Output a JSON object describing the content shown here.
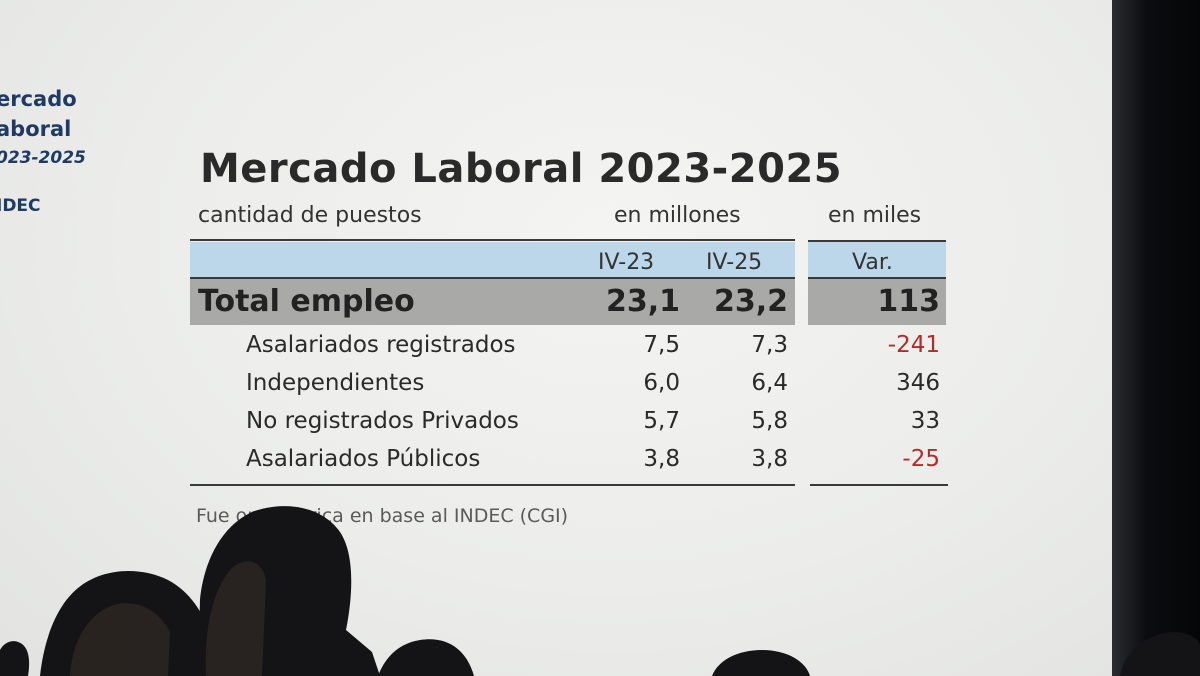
{
  "side_panel": {
    "line1": "ercado",
    "line2": "aboral",
    "line3": "023-2025",
    "line4": "IDEC"
  },
  "slide": {
    "title": "Mercado Laboral 2023-2025",
    "subtitle_left": "cantidad de puestos",
    "subtitle_mid": "en millones",
    "subtitle_right": "en miles",
    "columns": [
      "IV-23",
      "IV-25",
      "Var."
    ],
    "total": {
      "label": "Total empleo",
      "iv23": "23,1",
      "iv25": "23,2",
      "var": "113"
    },
    "rows": [
      {
        "label": "Asalariados registrados",
        "iv23": "7,5",
        "iv25": "7,3",
        "var": "-241",
        "negative": true
      },
      {
        "label": "Independientes",
        "iv23": "6,0",
        "iv25": "6,4",
        "var": "346",
        "negative": false
      },
      {
        "label": "No registrados Privados",
        "iv23": "5,7",
        "iv25": "5,8",
        "var": "33",
        "negative": false
      },
      {
        "label": "Asalariados Públicos",
        "iv23": "3,8",
        "iv25": "3,8",
        "var": "-25",
        "negative": true
      }
    ],
    "source": "Fue    onométrica en base al INDEC (CGI)"
  },
  "colors": {
    "header_band": "#bcd6ea",
    "total_band": "#a9aaa8",
    "negative": "#b22b2b",
    "side_text": "#1f3a63"
  }
}
